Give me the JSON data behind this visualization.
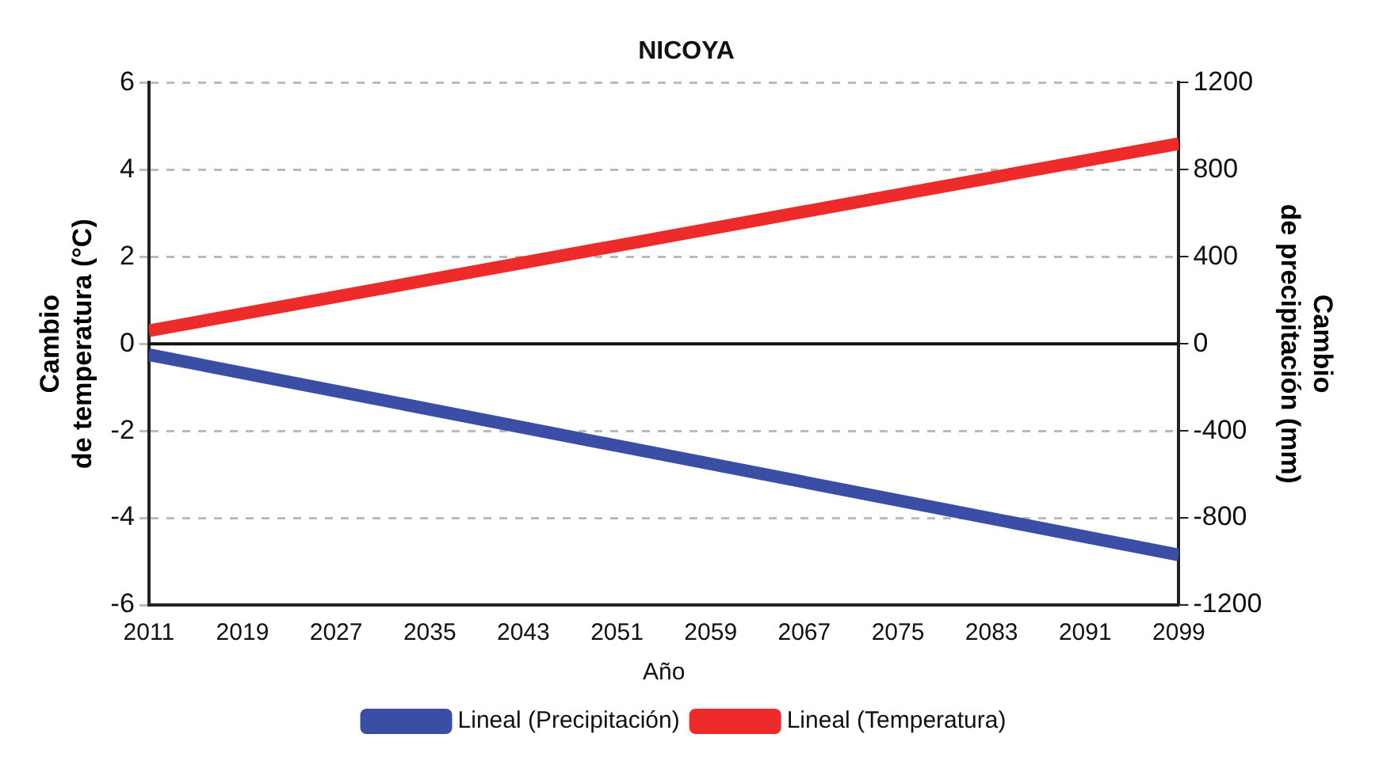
{
  "chart_data": {
    "type": "line",
    "title": "NICOYA",
    "xlabel": "Año",
    "ylabel": "Cambio de temperatura (°C)",
    "y2label": "Cambio de precipitación (mm)",
    "x": [
      2011,
      2099
    ],
    "xlim": [
      2011,
      2099
    ],
    "xticks": [
      2011,
      2019,
      2027,
      2035,
      2043,
      2051,
      2059,
      2067,
      2075,
      2083,
      2091,
      2099
    ],
    "ylim": [
      -6,
      6
    ],
    "yticks": [
      -6,
      -4,
      -2,
      0,
      2,
      4,
      6
    ],
    "y2lim": [
      -1200,
      1200
    ],
    "y2ticks": [
      -1200,
      -800,
      -400,
      0,
      400,
      800,
      1200
    ],
    "grid": "y",
    "ref_lines": [
      {
        "axis": "y",
        "value": 0,
        "color": "#111111"
      }
    ],
    "legend": "bottom",
    "marker": "none",
    "line_style": "solid",
    "series": [
      {
        "name": "Lineal (Precipitación)",
        "color": "#3a4ea6",
        "axis": "y2",
        "values": [
          -50,
          -970
        ]
      },
      {
        "name": "Lineal (Temperatura)",
        "color": "#ee2b2b",
        "axis": "y",
        "values": [
          0.3,
          4.6
        ]
      }
    ]
  }
}
